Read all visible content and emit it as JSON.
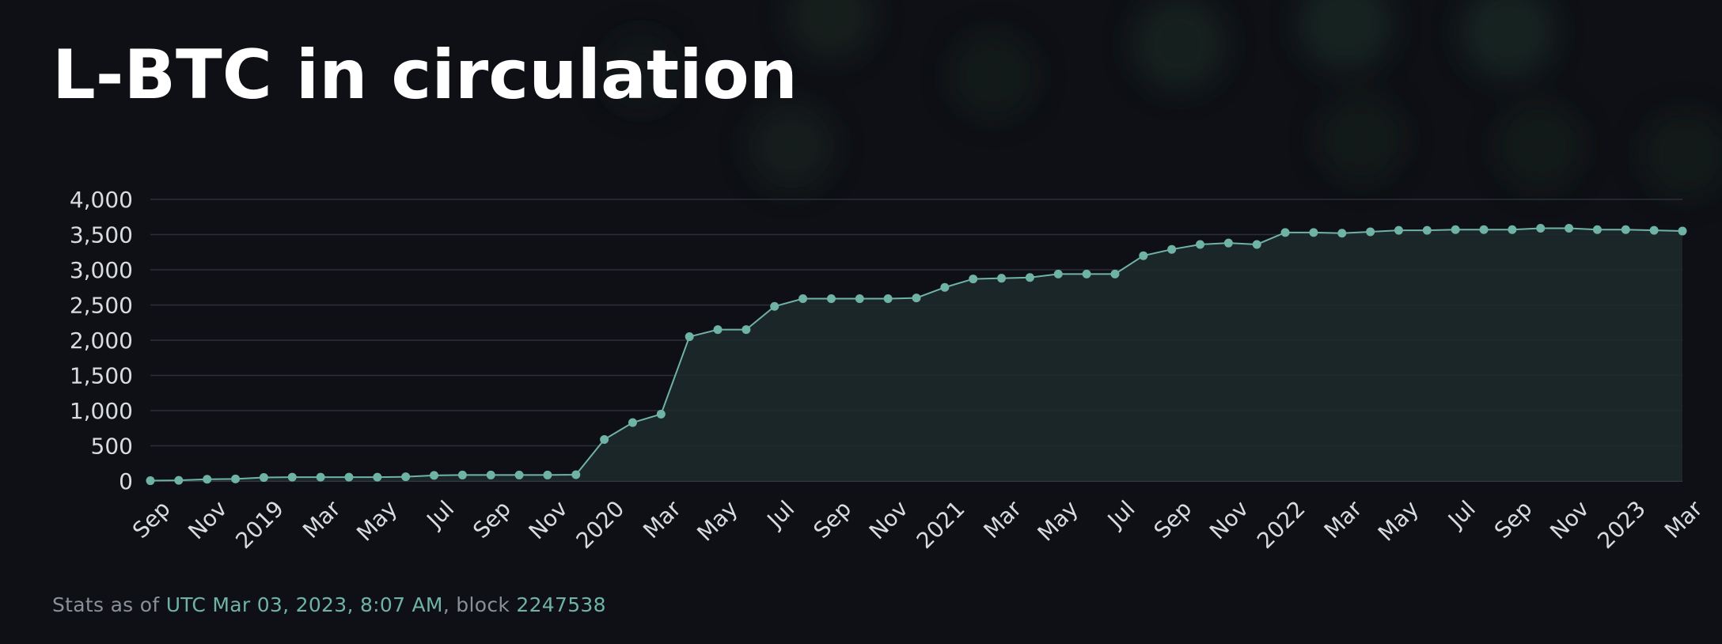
{
  "title": "L-BTC in circulation",
  "footer": {
    "prefix": "Stats as of ",
    "timestamp": "UTC Mar 03, 2023, 8:07 AM",
    "separator": ", block ",
    "block": "2247538"
  },
  "colors": {
    "background": "#0e1015",
    "line": "#6fb3a6",
    "area": "#1c2a2c",
    "grid": "#2a2f38",
    "text": "#d8dbe0",
    "accent_text": "#6fb3a6"
  },
  "chart_data": {
    "type": "area",
    "title": "L-BTC in circulation",
    "xlabel": "",
    "ylabel": "",
    "ylim": [
      0,
      4000
    ],
    "y_ticks": [
      "0",
      "500",
      "1,000",
      "1,500",
      "2,000",
      "2,500",
      "3,000",
      "3,500",
      "4,000"
    ],
    "x_ticks": [
      "Sep",
      "Nov",
      "2019",
      "Mar",
      "May",
      "Jul",
      "Sep",
      "Nov",
      "2020",
      "Mar",
      "May",
      "Jul",
      "Sep",
      "Nov",
      "2021",
      "Mar",
      "May",
      "Jul",
      "Sep",
      "Nov",
      "2022",
      "Mar",
      "May",
      "Jul",
      "Sep",
      "Nov",
      "2023",
      "Mar"
    ],
    "grid": true,
    "legend": "none",
    "x": [
      "2018-09",
      "2018-10",
      "2018-11",
      "2018-12",
      "2019-01",
      "2019-02",
      "2019-03",
      "2019-04",
      "2019-05",
      "2019-06",
      "2019-07",
      "2019-08",
      "2019-09",
      "2019-10",
      "2019-11",
      "2019-12",
      "2020-01",
      "2020-02",
      "2020-03",
      "2020-04",
      "2020-05",
      "2020-06",
      "2020-07",
      "2020-08",
      "2020-09",
      "2020-10",
      "2020-11",
      "2020-12",
      "2021-01",
      "2021-02",
      "2021-03",
      "2021-04",
      "2021-05",
      "2021-06",
      "2021-07",
      "2021-08",
      "2021-09",
      "2021-10",
      "2021-11",
      "2021-12",
      "2022-01",
      "2022-02",
      "2022-03",
      "2022-04",
      "2022-05",
      "2022-06",
      "2022-07",
      "2022-08",
      "2022-09",
      "2022-10",
      "2022-11",
      "2022-12",
      "2023-01",
      "2023-02",
      "2023-03"
    ],
    "series": [
      {
        "values": [
          5,
          10,
          25,
          30,
          50,
          55,
          55,
          55,
          55,
          60,
          80,
          85,
          85,
          85,
          85,
          90,
          590,
          830,
          950,
          2050,
          2150,
          2150,
          2480,
          2590,
          2590,
          2590,
          2590,
          2600,
          2750,
          2870,
          2880,
          2890,
          2940,
          2940,
          2940,
          3200,
          3290,
          3360,
          3380,
          3360,
          3530,
          3530,
          3520,
          3540,
          3560,
          3560,
          3570,
          3570,
          3570,
          3590,
          3590,
          3570,
          3570,
          3560,
          3550
        ]
      }
    ]
  }
}
